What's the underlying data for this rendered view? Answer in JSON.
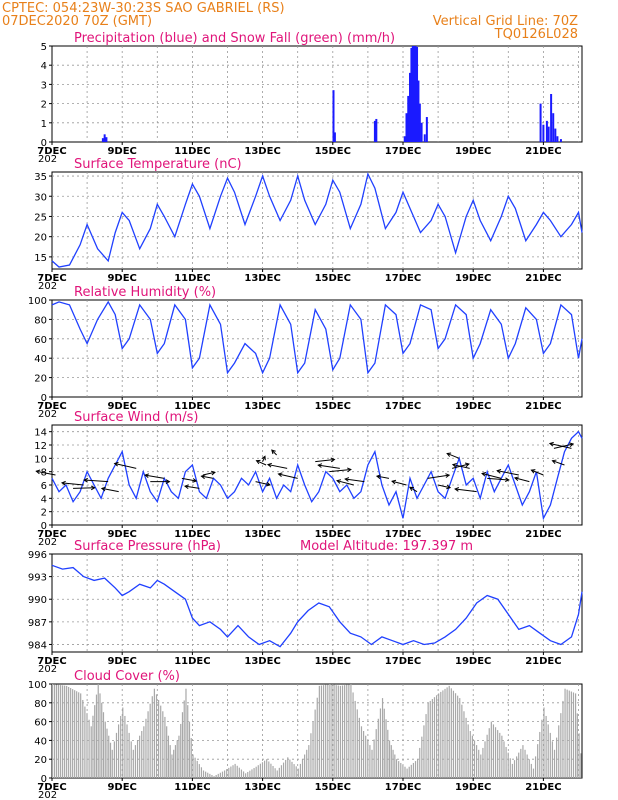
{
  "header": {
    "line1": "CPTEC:   054:23W-30:23S  SAO GABRIEL (RS)",
    "line2_left": "07DEC2020 70Z (GMT)",
    "line2_right": "Vertical Grid Line: 70Z",
    "line3_right": "TQ0126L028"
  },
  "xaxis": {
    "labels": [
      "7DEC",
      "9DEC",
      "11DEC",
      "13DEC",
      "15DEC",
      "17DEC",
      "19DEC",
      "21DEC"
    ],
    "label_days": [
      0,
      2,
      4,
      6,
      8,
      10,
      12,
      14
    ],
    "day_range": [
      0,
      15.1
    ],
    "year_stub": "202"
  },
  "chart_data": [
    {
      "id": "precip",
      "type": "bar",
      "title": "Precipitation (blue) and Snow Fall (green) (mm/h)",
      "ylim": [
        0,
        5
      ],
      "yticks": [
        0,
        1,
        2,
        3,
        4,
        5
      ],
      "grid": true,
      "colors": {
        "rain": "#1a1aff",
        "snow": "#20a020"
      },
      "bars": [
        [
          1.45,
          0.2
        ],
        [
          1.5,
          0.4
        ],
        [
          1.55,
          0.25
        ],
        [
          8.02,
          2.7
        ],
        [
          8.06,
          0.5
        ],
        [
          9.2,
          1.1
        ],
        [
          9.24,
          1.2
        ],
        [
          10.05,
          0.3
        ],
        [
          10.1,
          1.5
        ],
        [
          10.15,
          2.4
        ],
        [
          10.2,
          3.6
        ],
        [
          10.24,
          4.9
        ],
        [
          10.28,
          5.0
        ],
        [
          10.32,
          5.0
        ],
        [
          10.36,
          5.0
        ],
        [
          10.4,
          4.95
        ],
        [
          10.44,
          3.2
        ],
        [
          10.48,
          2.0
        ],
        [
          10.53,
          1.0
        ],
        [
          10.62,
          0.4
        ],
        [
          10.68,
          1.3
        ],
        [
          13.92,
          2.0
        ],
        [
          14.0,
          0.9
        ],
        [
          14.1,
          1.1
        ],
        [
          14.15,
          0.8
        ],
        [
          14.22,
          2.5
        ],
        [
          14.28,
          1.5
        ],
        [
          14.34,
          0.7
        ],
        [
          14.4,
          0.3
        ],
        [
          14.5,
          0.15
        ]
      ]
    },
    {
      "id": "temp",
      "type": "line",
      "title": "Surface Temperature (nC)",
      "ylim": [
        12,
        36
      ],
      "yticks": [
        15,
        20,
        25,
        30,
        35
      ],
      "grid": true,
      "color": "#2040ff",
      "x": [
        0,
        0.2,
        0.5,
        0.8,
        1.0,
        1.3,
        1.6,
        1.8,
        2.0,
        2.2,
        2.5,
        2.8,
        3.0,
        3.2,
        3.5,
        3.8,
        4.0,
        4.2,
        4.5,
        4.8,
        5.0,
        5.2,
        5.5,
        5.8,
        6.0,
        6.2,
        6.5,
        6.8,
        7.0,
        7.2,
        7.5,
        7.8,
        8.0,
        8.2,
        8.5,
        8.8,
        9.0,
        9.2,
        9.5,
        9.8,
        10.0,
        10.2,
        10.5,
        10.8,
        11.0,
        11.2,
        11.5,
        11.8,
        12.0,
        12.2,
        12.5,
        12.8,
        13.0,
        13.2,
        13.5,
        13.8,
        14.0,
        14.2,
        14.5,
        14.8,
        15.0,
        15.1
      ],
      "values": [
        14,
        12.5,
        13,
        18,
        23,
        17,
        14,
        21,
        26,
        24,
        17,
        22,
        28,
        25,
        20,
        28,
        33,
        30,
        22,
        30,
        34.5,
        31,
        23,
        30,
        35,
        30,
        24,
        29,
        35,
        29,
        23,
        28,
        34,
        31,
        22,
        28,
        35.5,
        32,
        22,
        26,
        31,
        27,
        21,
        24,
        28,
        25,
        16,
        25,
        29,
        24,
        19,
        25,
        30,
        27,
        19,
        23,
        26,
        24,
        20,
        23,
        26,
        21
      ]
    },
    {
      "id": "rh",
      "type": "line",
      "title": "Relative Humidity (%)",
      "ylim": [
        0,
        100
      ],
      "yticks": [
        0,
        20,
        40,
        60,
        80,
        100
      ],
      "grid": true,
      "color": "#2040ff",
      "x": [
        0,
        0.2,
        0.5,
        0.8,
        1.0,
        1.3,
        1.6,
        1.8,
        2.0,
        2.2,
        2.5,
        2.8,
        3.0,
        3.2,
        3.5,
        3.8,
        4.0,
        4.2,
        4.5,
        4.8,
        5.0,
        5.2,
        5.5,
        5.8,
        6.0,
        6.2,
        6.5,
        6.8,
        7.0,
        7.2,
        7.5,
        7.8,
        8.0,
        8.2,
        8.5,
        8.8,
        9.0,
        9.2,
        9.5,
        9.8,
        10.0,
        10.2,
        10.5,
        10.8,
        11.0,
        11.2,
        11.5,
        11.8,
        12.0,
        12.2,
        12.5,
        12.8,
        13.0,
        13.2,
        13.5,
        13.8,
        14.0,
        14.2,
        14.5,
        14.8,
        15.0,
        15.1
      ],
      "values": [
        95,
        98,
        95,
        70,
        55,
        80,
        98,
        85,
        50,
        60,
        95,
        80,
        45,
        55,
        95,
        80,
        30,
        40,
        95,
        75,
        25,
        35,
        55,
        45,
        25,
        40,
        95,
        75,
        25,
        35,
        90,
        70,
        28,
        40,
        95,
        80,
        25,
        35,
        95,
        85,
        45,
        55,
        95,
        90,
        50,
        60,
        95,
        85,
        40,
        55,
        90,
        75,
        40,
        55,
        92,
        80,
        45,
        55,
        95,
        85,
        40,
        60
      ]
    },
    {
      "id": "wind",
      "type": "line",
      "title": "Surface Wind (m/s)",
      "ylim": [
        0,
        15
      ],
      "yticks": [
        0,
        2,
        4,
        6,
        8,
        10,
        12,
        14
      ],
      "grid": true,
      "color": "#2040ff",
      "x": [
        0,
        0.2,
        0.4,
        0.6,
        0.8,
        1.0,
        1.2,
        1.4,
        1.6,
        1.8,
        2.0,
        2.2,
        2.4,
        2.6,
        2.8,
        3.0,
        3.2,
        3.4,
        3.6,
        3.8,
        4.0,
        4.2,
        4.4,
        4.6,
        4.8,
        5.0,
        5.2,
        5.4,
        5.6,
        5.8,
        6.0,
        6.2,
        6.4,
        6.6,
        6.8,
        7.0,
        7.2,
        7.4,
        7.6,
        7.8,
        8.0,
        8.2,
        8.4,
        8.6,
        8.8,
        9.0,
        9.2,
        9.4,
        9.6,
        9.8,
        10.0,
        10.2,
        10.4,
        10.6,
        10.8,
        11.0,
        11.2,
        11.4,
        11.6,
        11.8,
        12.0,
        12.2,
        12.4,
        12.6,
        12.8,
        13.0,
        13.2,
        13.4,
        13.6,
        13.8,
        14.0,
        14.2,
        14.4,
        14.6,
        14.8,
        15.0,
        15.1
      ],
      "values": [
        7,
        5,
        6,
        3.5,
        5,
        8,
        6,
        4,
        7,
        9,
        11,
        6,
        4,
        8,
        5,
        3.5,
        7,
        5,
        4,
        8,
        9,
        5,
        4,
        7,
        6,
        4,
        5,
        7,
        6,
        8,
        5,
        7,
        4,
        6,
        5,
        9,
        6,
        3.5,
        5,
        8,
        7,
        5,
        6,
        4,
        5,
        9,
        11,
        6,
        3,
        5,
        1,
        7,
        4,
        6,
        8,
        5,
        4,
        7,
        10,
        6,
        7,
        4,
        8,
        5,
        7,
        9,
        6,
        3,
        5,
        8,
        1,
        3,
        7,
        11,
        13,
        14,
        13
      ]
    },
    {
      "id": "pressure",
      "type": "line",
      "title": "Surface Pressure (hPa)",
      "annotation": "Model Altitude: 197.397 m",
      "ylim": [
        983,
        996
      ],
      "yticks": [
        984,
        987,
        990,
        993,
        996
      ],
      "grid": true,
      "color": "#2040ff",
      "x": [
        0,
        0.3,
        0.6,
        0.9,
        1.2,
        1.5,
        1.8,
        2.0,
        2.2,
        2.5,
        2.8,
        3.0,
        3.2,
        3.5,
        3.8,
        4.0,
        4.2,
        4.5,
        4.8,
        5.0,
        5.3,
        5.6,
        5.9,
        6.2,
        6.5,
        6.8,
        7.0,
        7.3,
        7.6,
        7.9,
        8.2,
        8.5,
        8.8,
        9.1,
        9.4,
        9.7,
        10.0,
        10.3,
        10.6,
        10.9,
        11.2,
        11.5,
        11.8,
        12.1,
        12.4,
        12.7,
        13.0,
        13.3,
        13.6,
        13.9,
        14.2,
        14.5,
        14.8,
        15.0,
        15.1
      ],
      "values": [
        994.5,
        994,
        994.2,
        993,
        992.5,
        992.8,
        991.5,
        990.5,
        991,
        992,
        991.5,
        992.5,
        992,
        991,
        990,
        987.5,
        986.5,
        987,
        986,
        985,
        986.5,
        985,
        984,
        984.5,
        983.7,
        985.5,
        987,
        988.5,
        989.5,
        989,
        987,
        985.5,
        985,
        984,
        985,
        984.5,
        984,
        984.5,
        984,
        984.2,
        985,
        986,
        987.5,
        989.5,
        990.5,
        990,
        988,
        986,
        986.5,
        985.5,
        984.5,
        984,
        985,
        988,
        991
      ]
    },
    {
      "id": "cloud",
      "type": "area",
      "title": "Cloud Cover (%)",
      "ylim": [
        0,
        100
      ],
      "yticks": [
        0,
        20,
        40,
        60,
        80,
        100
      ],
      "grid": true,
      "color": "#a8a8a8",
      "x": [
        0,
        0.4,
        0.8,
        1.1,
        1.3,
        1.5,
        1.7,
        2.0,
        2.3,
        2.6,
        2.9,
        3.2,
        3.4,
        3.6,
        3.8,
        4.0,
        4.3,
        4.6,
        4.9,
        5.2,
        5.5,
        5.8,
        6.1,
        6.4,
        6.7,
        7.0,
        7.3,
        7.6,
        7.9,
        8.2,
        8.5,
        8.8,
        9.1,
        9.4,
        9.6,
        9.8,
        10.1,
        10.4,
        10.7,
        11.0,
        11.3,
        11.6,
        11.9,
        12.2,
        12.5,
        12.8,
        13.1,
        13.4,
        13.7,
        14.0,
        14.3,
        14.6,
        14.9,
        15.1
      ],
      "values": [
        100,
        98,
        90,
        55,
        100,
        60,
        30,
        75,
        30,
        55,
        95,
        65,
        25,
        45,
        95,
        25,
        8,
        2,
        8,
        15,
        5,
        12,
        20,
        8,
        22,
        10,
        35,
        98,
        100,
        98,
        100,
        55,
        30,
        85,
        40,
        20,
        10,
        20,
        80,
        90,
        98,
        85,
        50,
        25,
        60,
        45,
        15,
        35,
        10,
        75,
        30,
        95,
        90,
        5
      ]
    }
  ],
  "wind_vectors": [
    [
      0.1,
      7.5,
      -8,
      7
    ],
    [
      0.6,
      5.5,
      9,
      1
    ],
    [
      0.9,
      6,
      -9,
      4
    ],
    [
      1.6,
      6.5,
      -10,
      3
    ],
    [
      1.9,
      5,
      -7,
      6
    ],
    [
      2.4,
      8.5,
      -9,
      9
    ],
    [
      2.8,
      6.5,
      8,
      0
    ],
    [
      3.2,
      7,
      -8,
      6
    ],
    [
      3.7,
      7,
      6,
      -5
    ],
    [
      4.2,
      5.5,
      -6,
      4
    ],
    [
      4.3,
      7.5,
      5,
      5
    ],
    [
      4.6,
      7,
      -5,
      4
    ],
    [
      5.8,
      6.5,
      6,
      -6
    ],
    [
      6.0,
      9.5,
      1,
      10
    ],
    [
      6.1,
      9,
      -4,
      8
    ],
    [
      6.4,
      10.5,
      -2,
      9
    ],
    [
      6.7,
      8.5,
      -8,
      7
    ],
    [
      7.0,
      7,
      -8,
      8
    ],
    [
      7.5,
      9.5,
      8,
      4
    ],
    [
      7.9,
      8,
      9,
      4
    ],
    [
      8.2,
      8.5,
      -9,
      6
    ],
    [
      8.6,
      6,
      -7,
      8
    ],
    [
      8.9,
      6.5,
      -8,
      5
    ],
    [
      9.6,
      7,
      -5,
      4
    ],
    [
      10.1,
      6,
      -6,
      7
    ],
    [
      10.4,
      5,
      -3,
      8
    ],
    [
      10.7,
      7,
      9,
      6
    ],
    [
      11.0,
      6,
      5,
      -5
    ],
    [
      11.4,
      8.5,
      7,
      8
    ],
    [
      11.6,
      10,
      -5,
      9
    ],
    [
      11.9,
      8.5,
      -7,
      7
    ],
    [
      12.1,
      5,
      -9,
      5
    ],
    [
      12.4,
      7,
      9,
      -3
    ],
    [
      12.8,
      7,
      -8,
      9
    ],
    [
      13.3,
      7.5,
      -9,
      8
    ],
    [
      13.6,
      6.5,
      -6,
      7
    ],
    [
      14.0,
      7.5,
      -5,
      9
    ],
    [
      14.3,
      11.5,
      8,
      8
    ],
    [
      14.6,
      9,
      -5,
      8
    ],
    [
      14.8,
      11.5,
      -9,
      9
    ]
  ]
}
